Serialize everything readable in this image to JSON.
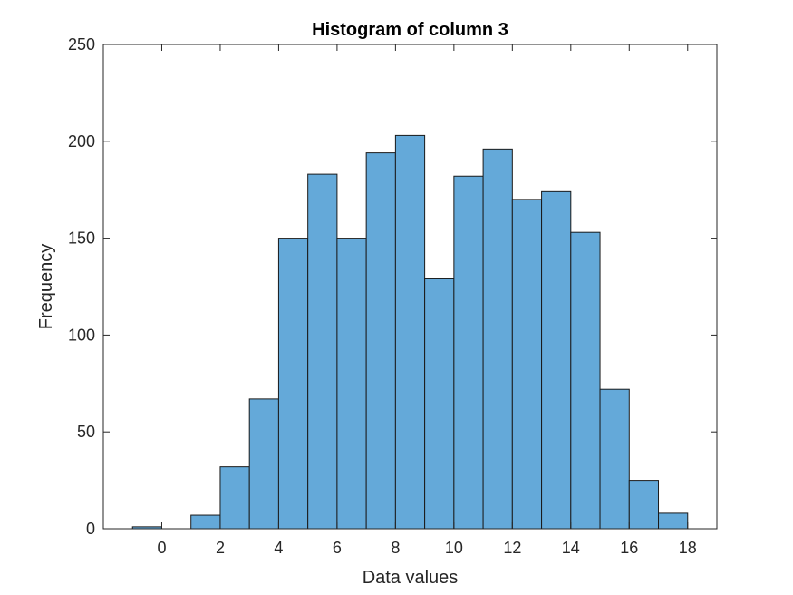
{
  "chart_data": {
    "type": "bar",
    "title": "Histogram of column 3",
    "xlabel": "Data values",
    "ylabel": "Frequency",
    "xlim": [
      -2,
      19
    ],
    "ylim": [
      0,
      250
    ],
    "xticks": [
      0,
      2,
      4,
      6,
      8,
      10,
      12,
      14,
      16,
      18
    ],
    "yticks": [
      0,
      50,
      100,
      150,
      200,
      250
    ],
    "bin_edges": [
      -1,
      0,
      1,
      2,
      3,
      4,
      5,
      6,
      7,
      8,
      9,
      10,
      11,
      12,
      13,
      14,
      15,
      16,
      17,
      18
    ],
    "values": [
      1,
      0,
      7,
      32,
      67,
      150,
      183,
      150,
      194,
      203,
      129,
      182,
      196,
      170,
      174,
      153,
      72,
      25,
      8
    ],
    "grid": false,
    "colors": {
      "bar_fill": "#64a9d9",
      "bar_edge": "#1a1a1a",
      "axis": "#262626"
    }
  }
}
